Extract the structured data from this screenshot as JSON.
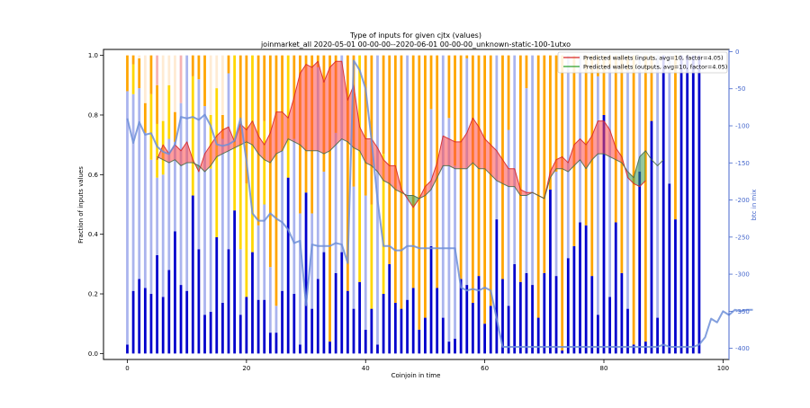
{
  "chart_data": {
    "type": "bar",
    "title": "Type of inputs for given cjtx (values)",
    "subtitle": "joinmarket_all 2020-05-01 00-00-00--2020-06-01 00-00-00_unknown-static-100-1utxo",
    "xlabel": "Coinjoin in time",
    "ylabel": "Fraction of inputs values",
    "y2label": "btc in mix",
    "xlim": [
      -4,
      101
    ],
    "ylim": [
      -0.02,
      1.02
    ],
    "y2lim": [
      -415,
      3
    ],
    "x_ticks": [
      0,
      20,
      40,
      60,
      80,
      100
    ],
    "y_ticks": [
      0.0,
      0.2,
      0.4,
      0.6,
      0.8,
      1.0
    ],
    "y2_ticks": [
      0,
      -50,
      -100,
      -150,
      -200,
      -250,
      -300,
      -350,
      -400
    ],
    "grid": false,
    "legend_position": "top-right",
    "colors": {
      "fresh": "#0000cc",
      "remix": "#aab4ee",
      "other1": "#ffd700",
      "other2": "#ffa500",
      "other3": "#f4a0a0",
      "other4": "#ffe6c8",
      "inputs_line": "#d62728",
      "inputs_fill": "#ff4b4b",
      "outputs_line": "#2ca02c",
      "outputs_fill": "#3c9b50",
      "btc_line": "#6f8fd8",
      "btc_axis": "#4466cc",
      "pink_remix": "#e08080"
    },
    "bars": {
      "fresh": [
        0.03,
        0.21,
        0.25,
        0.22,
        0.2,
        0.33,
        0.19,
        0.28,
        0.41,
        0.23,
        0.21,
        0.53,
        0.35,
        0.13,
        0.14,
        0.39,
        0.17,
        0.35,
        0.48,
        0.13,
        0.19,
        0.34,
        0.18,
        0.18,
        0.07,
        0.07,
        0.21,
        0.59,
        0.2,
        0.03,
        0.54,
        0.15,
        0.25,
        0.34,
        0.04,
        0.27,
        0.34,
        0.21,
        0.15,
        0.24,
        0.08,
        0.15,
        0.03,
        0.2,
        0.3,
        0.17,
        0.15,
        0.18,
        0.22,
        0.08,
        0.12,
        0.36,
        0.22,
        0.12,
        0.04,
        0.05,
        0.25,
        0.23,
        0.17,
        0.26,
        0.1,
        0.16,
        0.45,
        0.25,
        0.16,
        0.3,
        0.24,
        0.27,
        0.23,
        0.12,
        0.27,
        0.55,
        0.26,
        0.01,
        0.32,
        0.36,
        0.44,
        0.43,
        0.26,
        0.13,
        0.8,
        0.19,
        0.44,
        0.27,
        0.15,
        0.03,
        0.61,
        0.04,
        0.78,
        0.12,
        1.0,
        0.57,
        0.45,
        1.0,
        1.0,
        1.0,
        1.0
      ],
      "remix": [
        0.85,
        0.66,
        0.64,
        0.52,
        0.45,
        0.26,
        0.41,
        0.44,
        0.3,
        0.61,
        0.79,
        0.0,
        0.57,
        0.7,
        0.48,
        0.0,
        0.55,
        0.59,
        0.0,
        0.22,
        0.0,
        0.0,
        0.25,
        0.32,
        0.22,
        0.09,
        0.47,
        0.0,
        0.52,
        0.44,
        0.0,
        0.32,
        0.71,
        0.27,
        0.0,
        0.47,
        0.66,
        0.0,
        0.41,
        0.0,
        0.45,
        0.0,
        0.97,
        0.0,
        0.0,
        0.0,
        0.0,
        0.82,
        0.0,
        0.0,
        0.0,
        0.46,
        0.0,
        0.88,
        0.75,
        0.58,
        0.0,
        0.76,
        0.0,
        0.0,
        0.0,
        0.0,
        0.55,
        0.0,
        0.59,
        0.7,
        0.0,
        0.62,
        0.77,
        0.0,
        0.0,
        0.0,
        0.35,
        0.0,
        0.68,
        0.0,
        0.56,
        0.0,
        0.0,
        0.8,
        0.0,
        0.77,
        0.0,
        0.0,
        0.8,
        0.0,
        0.39,
        0.0,
        0.0,
        0.88,
        0.0,
        0.43,
        0.0,
        0.0,
        0.0,
        0.0,
        0.0
      ],
      "other1": [
        0.0,
        0.1,
        0.0,
        0.0,
        0.22,
        0.18,
        0.18,
        0.18,
        0.0,
        0.0,
        0.0,
        0.4,
        0.0,
        0.0,
        0.18,
        0.5,
        0.0,
        0.0,
        0.52,
        0.35,
        0.38,
        0.66,
        0.0,
        0.28,
        0.0,
        0.0,
        0.13,
        0.41,
        0.0,
        0.0,
        0.0,
        0.0,
        0.0,
        0.0,
        0.0,
        0.0,
        0.0,
        0.0,
        0.0,
        0.76,
        0.0,
        0.35,
        0.0,
        0.47,
        0.0,
        0.0,
        0.0,
        0.0,
        0.0,
        0.0,
        0.0,
        0.0,
        0.0,
        0.0,
        0.0,
        0.0,
        0.0,
        0.0,
        0.0,
        0.0,
        0.0,
        0.0,
        0.0,
        0.0,
        0.0,
        0.0,
        0.0,
        0.0,
        0.0,
        0.0,
        0.0,
        0.0,
        0.0,
        0.0,
        0.0,
        0.0,
        0.0,
        0.0,
        0.0,
        0.0,
        0.0,
        0.0,
        0.0,
        0.0,
        0.0,
        0.0,
        0.0,
        0.0,
        0.0,
        0.0,
        0.0,
        0.0,
        0.0,
        0.0,
        0.0,
        0.0,
        0.0
      ],
      "other2": [
        0.12,
        0.03,
        0.1,
        0.1,
        0.13,
        0.13,
        0.0,
        0.0,
        0.1,
        0.0,
        0.0,
        0.07,
        0.08,
        0.17,
        0.0,
        0.0,
        0.08,
        0.06,
        0.0,
        0.3,
        0.43,
        0.0,
        0.57,
        0.22,
        0.71,
        0.84,
        0.19,
        0.0,
        0.28,
        0.53,
        0.46,
        0.53,
        0.04,
        0.39,
        0.96,
        0.26,
        0.0,
        0.79,
        0.44,
        0.0,
        0.47,
        0.5,
        0.0,
        0.33,
        0.7,
        0.83,
        0.85,
        0.0,
        0.78,
        0.92,
        0.88,
        0.18,
        0.78,
        0.0,
        0.21,
        0.37,
        0.75,
        0.01,
        0.83,
        0.74,
        0.9,
        0.84,
        0.0,
        0.75,
        0.25,
        0.0,
        0.76,
        0.11,
        0.0,
        0.88,
        0.73,
        0.45,
        0.39,
        0.99,
        0.0,
        0.64,
        0.0,
        0.57,
        0.74,
        0.07,
        0.2,
        0.04,
        0.56,
        0.73,
        0.05,
        0.97,
        0.0,
        0.96,
        0.22,
        0.0,
        0.0,
        0.0,
        0.55,
        0.0,
        0.0,
        0.0,
        0.0
      ]
    },
    "inputs_series": [
      null,
      null,
      null,
      null,
      null,
      0.65,
      0.7,
      0.67,
      0.7,
      0.68,
      0.71,
      0.65,
      0.61,
      0.67,
      0.7,
      0.73,
      0.75,
      0.76,
      0.71,
      0.77,
      0.75,
      0.78,
      0.73,
      0.7,
      0.74,
      0.81,
      0.81,
      0.79,
      0.86,
      0.94,
      0.97,
      0.96,
      0.98,
      0.91,
      0.96,
      0.98,
      0.98,
      0.85,
      0.9,
      0.76,
      0.72,
      0.72,
      0.69,
      0.65,
      0.63,
      0.63,
      0.55,
      0.52,
      0.49,
      0.52,
      0.56,
      0.58,
      0.64,
      0.73,
      0.72,
      0.71,
      0.71,
      0.74,
      0.79,
      0.76,
      0.72,
      0.7,
      0.68,
      0.65,
      0.62,
      0.62,
      0.55,
      0.54,
      0.54,
      0.53,
      0.52,
      0.61,
      0.65,
      0.66,
      0.64,
      0.7,
      0.72,
      0.7,
      0.73,
      0.78,
      0.78,
      0.75,
      0.69,
      0.66,
      0.59,
      0.57,
      0.56,
      0.58,
      null,
      null,
      null
    ],
    "outputs_series": [
      null,
      null,
      null,
      null,
      null,
      0.66,
      0.65,
      0.64,
      0.65,
      0.63,
      0.64,
      0.64,
      0.63,
      0.61,
      0.63,
      0.66,
      0.67,
      0.68,
      0.69,
      0.7,
      0.71,
      0.7,
      0.67,
      0.65,
      0.64,
      0.67,
      0.68,
      0.72,
      0.71,
      0.7,
      0.68,
      0.68,
      0.68,
      0.67,
      0.68,
      0.7,
      0.72,
      0.71,
      0.69,
      0.68,
      0.64,
      0.63,
      0.61,
      0.58,
      0.57,
      0.55,
      0.54,
      0.53,
      0.53,
      0.52,
      0.53,
      0.55,
      0.59,
      0.63,
      0.63,
      0.62,
      0.62,
      0.62,
      0.64,
      0.62,
      0.62,
      0.6,
      0.58,
      0.57,
      0.56,
      0.56,
      0.53,
      0.53,
      0.54,
      0.53,
      0.52,
      0.59,
      0.62,
      0.62,
      0.61,
      0.63,
      0.65,
      0.62,
      0.65,
      0.67,
      0.67,
      0.66,
      0.65,
      0.64,
      0.61,
      0.59,
      0.66,
      0.68,
      0.65,
      0.63,
      0.65
    ],
    "btc_in_mix": [
      -90,
      -123,
      -95,
      -112,
      -110,
      -128,
      -135,
      -138,
      -125,
      -88,
      -90,
      -88,
      -92,
      -85,
      -100,
      -125,
      -127,
      -125,
      -120,
      -90,
      -148,
      -218,
      -228,
      -228,
      -218,
      -225,
      -230,
      -240,
      -258,
      -255,
      -342,
      -260,
      -262,
      -262,
      -262,
      -258,
      -260,
      -285,
      -12,
      -25,
      -50,
      -120,
      -200,
      -262,
      -262,
      -268,
      -268,
      -262,
      -262,
      -265,
      -265,
      -265,
      -265,
      -265,
      -265,
      -265,
      -318,
      -322,
      -320,
      -322,
      -318,
      -322,
      -360,
      -398,
      -398,
      -398,
      -398,
      -398,
      -398,
      -398,
      -398,
      -398,
      -398,
      -398,
      -398,
      -398,
      -398,
      -398,
      -398,
      -398,
      -398,
      -398,
      -398,
      -398,
      -398,
      -398,
      -398,
      -398,
      -398,
      -398,
      -395,
      -398,
      -398,
      -398,
      -398,
      -398,
      -395,
      -385,
      -360,
      -365,
      -350,
      -355,
      -348,
      -350,
      -348,
      -348
    ],
    "legend": [
      {
        "label": "Predicted wallets (inputs, avg=10, factor=4.05)",
        "color": "#d62728"
      },
      {
        "label": "Predicted wallets (outputs, avg=10, factor=4.05)",
        "color": "#2ca02c"
      }
    ]
  }
}
